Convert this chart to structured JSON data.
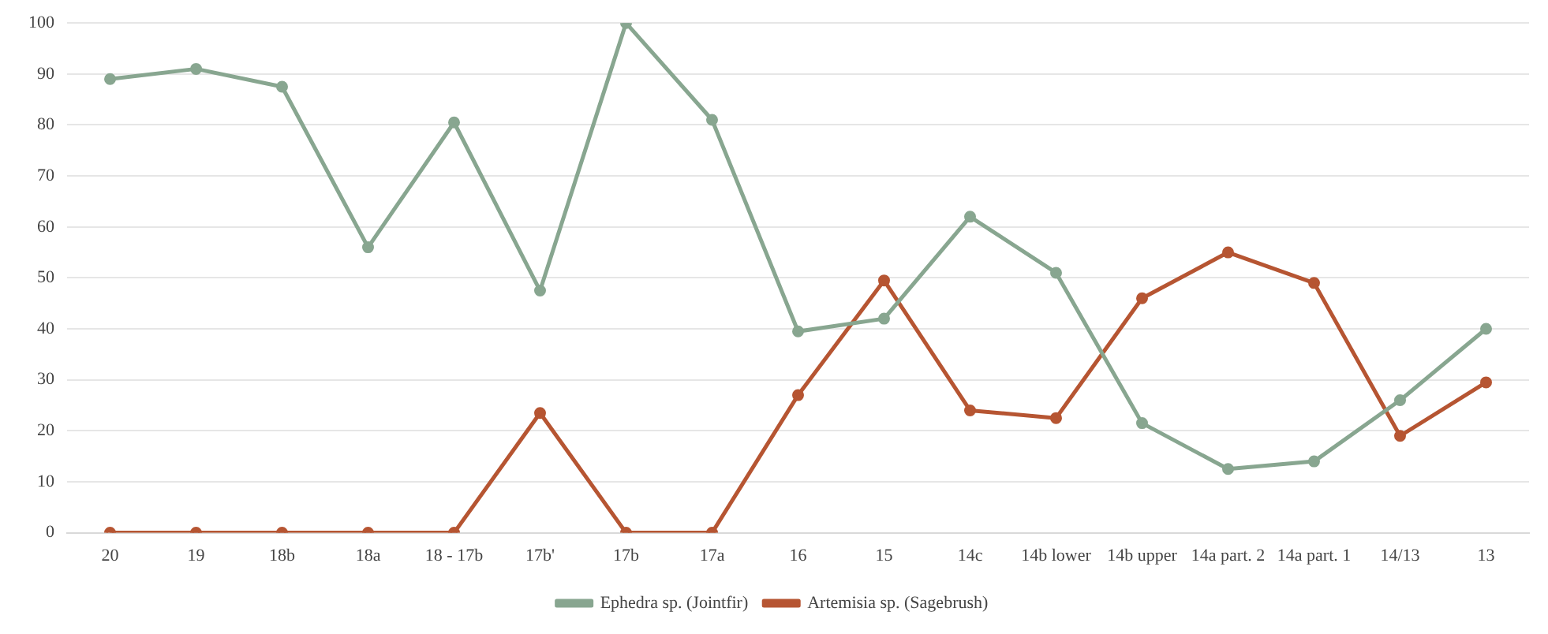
{
  "chart_data": {
    "type": "line",
    "categories": [
      "20",
      "19",
      "18b",
      "18a",
      "18 - 17b",
      "17b'",
      "17b",
      "17a",
      "16",
      "15",
      "14c",
      "14b lower",
      "14b upper",
      "14a part. 2",
      "14a part. 1",
      "14/13",
      "13"
    ],
    "series": [
      {
        "name": "Ephedra sp. (Jointfir)",
        "color": "#88a690",
        "values": [
          89,
          91,
          87.5,
          56,
          80.5,
          47.5,
          100,
          81,
          39.5,
          42,
          62,
          51,
          21.5,
          12.5,
          14,
          26,
          40
        ]
      },
      {
        "name": "Artemisia sp. (Sagebrush)",
        "color": "#b65532",
        "values": [
          0,
          0,
          0,
          0,
          0,
          23.5,
          0,
          0,
          27,
          49.5,
          24,
          22.5,
          46,
          55,
          49,
          19,
          29.5
        ]
      }
    ],
    "ylim": [
      0,
      100
    ],
    "yticks": [
      0,
      10,
      20,
      30,
      40,
      50,
      60,
      70,
      80,
      90,
      100
    ],
    "grid": "y",
    "legend": "bottom",
    "marker": "circle",
    "line_style": "solid"
  }
}
